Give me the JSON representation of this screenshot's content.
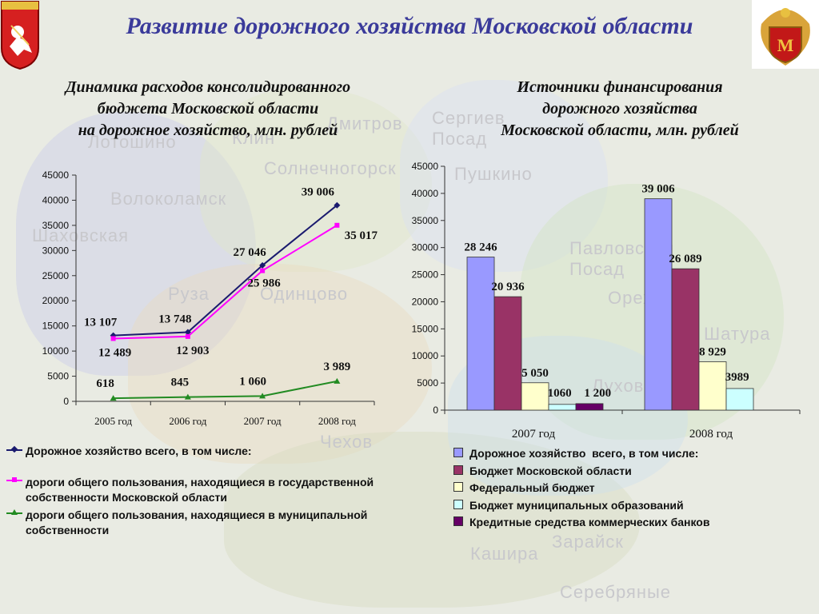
{
  "title": "Развитие дорожного хозяйства Московской области",
  "colors": {
    "title": "#3a3a9a"
  },
  "emblems": {
    "left": "moscow-oblast-coat-of-arms-icon",
    "right": "road-service-emblem-icon"
  },
  "map_labels": [
    "Дмитров",
    "Сергиев Посад",
    "Пушкино",
    "Солнечногорск",
    "Волоколамск",
    "Шаховская",
    "Руза",
    "Одинцово",
    "Клин",
    "Павловский Посад",
    "Орехово",
    "Луховицы",
    "Зарайск",
    "Чехов",
    "Кашира",
    "Серебряные",
    "Лотошино",
    "Шатура"
  ],
  "chart_data": [
    {
      "type": "line",
      "title": "Динамика расходов консолидированного бюджета Московской области на дорожное хозяйство, млн. рублей",
      "title_lines": [
        "Динамика расходов консолидированного",
        "бюджета Московской области",
        "на дорожное хозяйство, млн. рублей"
      ],
      "categories": [
        "2005 год",
        "2006 год",
        "2007 год",
        "2008 год"
      ],
      "ylim": [
        0,
        45000
      ],
      "yticks": [
        0,
        5000,
        10000,
        15000,
        20000,
        25000,
        30000,
        35000,
        40000,
        45000
      ],
      "grid": false,
      "legend_position": "bottom",
      "series": [
        {
          "name": "Дорожное хозяйство всего, в том числе:",
          "color": "#1a1a6e",
          "marker": "diamond",
          "values": [
            13107,
            13748,
            27046,
            39006
          ],
          "labels": [
            "13 107",
            "13 748",
            "27 046",
            "39 006"
          ]
        },
        {
          "name": "дороги общего пользования, находящиеся в государственной собственности Московской области",
          "color": "#ff00ff",
          "marker": "square",
          "values": [
            12489,
            12903,
            25986,
            35017
          ],
          "labels": [
            "12 489",
            "12 903",
            "25 986",
            "35 017"
          ]
        },
        {
          "name": "дороги общего пользования, находящиеся в муниципальной собственности",
          "color": "#228b22",
          "marker": "triangle",
          "values": [
            618,
            845,
            1060,
            3989
          ],
          "labels": [
            "618",
            "845",
            "1 060",
            "3 989"
          ]
        }
      ]
    },
    {
      "type": "bar",
      "title": "Источники финансирования дорожного хозяйства Московской области, млн. рублей",
      "title_lines": [
        "Источники финансирования",
        "дорожного хозяйства",
        "Московской области, млн. рублей"
      ],
      "categories": [
        "2007 год",
        "2008 год"
      ],
      "ylim": [
        0,
        45000
      ],
      "yticks": [
        0,
        5000,
        10000,
        15000,
        20000,
        25000,
        30000,
        35000,
        40000,
        45000
      ],
      "grid": false,
      "legend_position": "bottom",
      "series": [
        {
          "name": "Дорожное хозяйство  всего, в том числе:",
          "color": "#9999ff",
          "values": [
            28246,
            39006
          ],
          "labels": [
            "28 246",
            "39 006"
          ]
        },
        {
          "name": "Бюджет Московской области",
          "color": "#993366",
          "values": [
            20936,
            26089
          ],
          "labels": [
            "20 936",
            "26 089"
          ]
        },
        {
          "name": "Федеральный бюджет",
          "color": "#ffffcc",
          "values": [
            5050,
            8929
          ],
          "labels": [
            "5 050",
            "8 929"
          ]
        },
        {
          "name": "Бюджет муниципальных образований",
          "color": "#ccffff",
          "values": [
            1060,
            3989
          ],
          "labels": [
            "1060",
            "3989"
          ]
        },
        {
          "name": "Кредитные средства коммерческих банков",
          "color": "#660066",
          "values": [
            1200,
            null
          ],
          "labels": [
            "1 200",
            ""
          ]
        }
      ]
    }
  ]
}
